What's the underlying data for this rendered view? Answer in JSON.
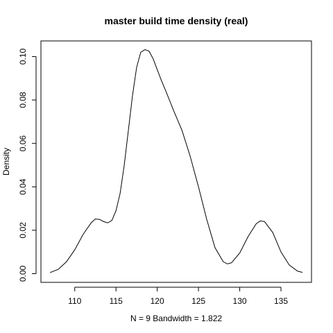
{
  "chart_data": {
    "type": "line",
    "title": "master build time density (real)",
    "xlabel": "N = 9   Bandwidth = 1.822",
    "ylabel": "Density",
    "xlim": [
      105.9,
      138.7
    ],
    "ylim": [
      -0.004,
      0.1072
    ],
    "x_ticks": [
      110,
      115,
      120,
      125,
      130,
      135
    ],
    "y_ticks": [
      0.0,
      0.02,
      0.04,
      0.06,
      0.08,
      0.1
    ],
    "x_tick_labels": [
      "110",
      "115",
      "120",
      "125",
      "130",
      "135"
    ],
    "y_tick_labels": [
      "0.00",
      "0.02",
      "0.04",
      "0.06",
      "0.08",
      "0.10"
    ],
    "grid": false,
    "series": [
      {
        "x": [
          107.0,
          108.0,
          109.0,
          110.0,
          111.0,
          112.0,
          112.5,
          113.0,
          113.5,
          114.0,
          114.5,
          115.0,
          115.5,
          116.0,
          116.5,
          117.0,
          117.5,
          118.0,
          118.5,
          119.0,
          119.5,
          120.0,
          120.5,
          121.0,
          122.0,
          123.0,
          124.0,
          125.0,
          126.0,
          127.0,
          128.0,
          128.5,
          129.0,
          130.0,
          131.0,
          132.0,
          132.5,
          133.0,
          134.0,
          135.0,
          136.0,
          137.0,
          137.6
        ],
        "y": [
          0.0005,
          0.002,
          0.0055,
          0.011,
          0.018,
          0.0235,
          0.0252,
          0.025,
          0.024,
          0.0234,
          0.0245,
          0.029,
          0.037,
          0.05,
          0.066,
          0.082,
          0.095,
          0.102,
          0.1032,
          0.1025,
          0.099,
          0.094,
          0.089,
          0.0845,
          0.075,
          0.066,
          0.054,
          0.04,
          0.025,
          0.012,
          0.0055,
          0.0045,
          0.005,
          0.0095,
          0.017,
          0.023,
          0.0243,
          0.024,
          0.019,
          0.01,
          0.004,
          0.0012,
          0.0006
        ]
      }
    ]
  }
}
